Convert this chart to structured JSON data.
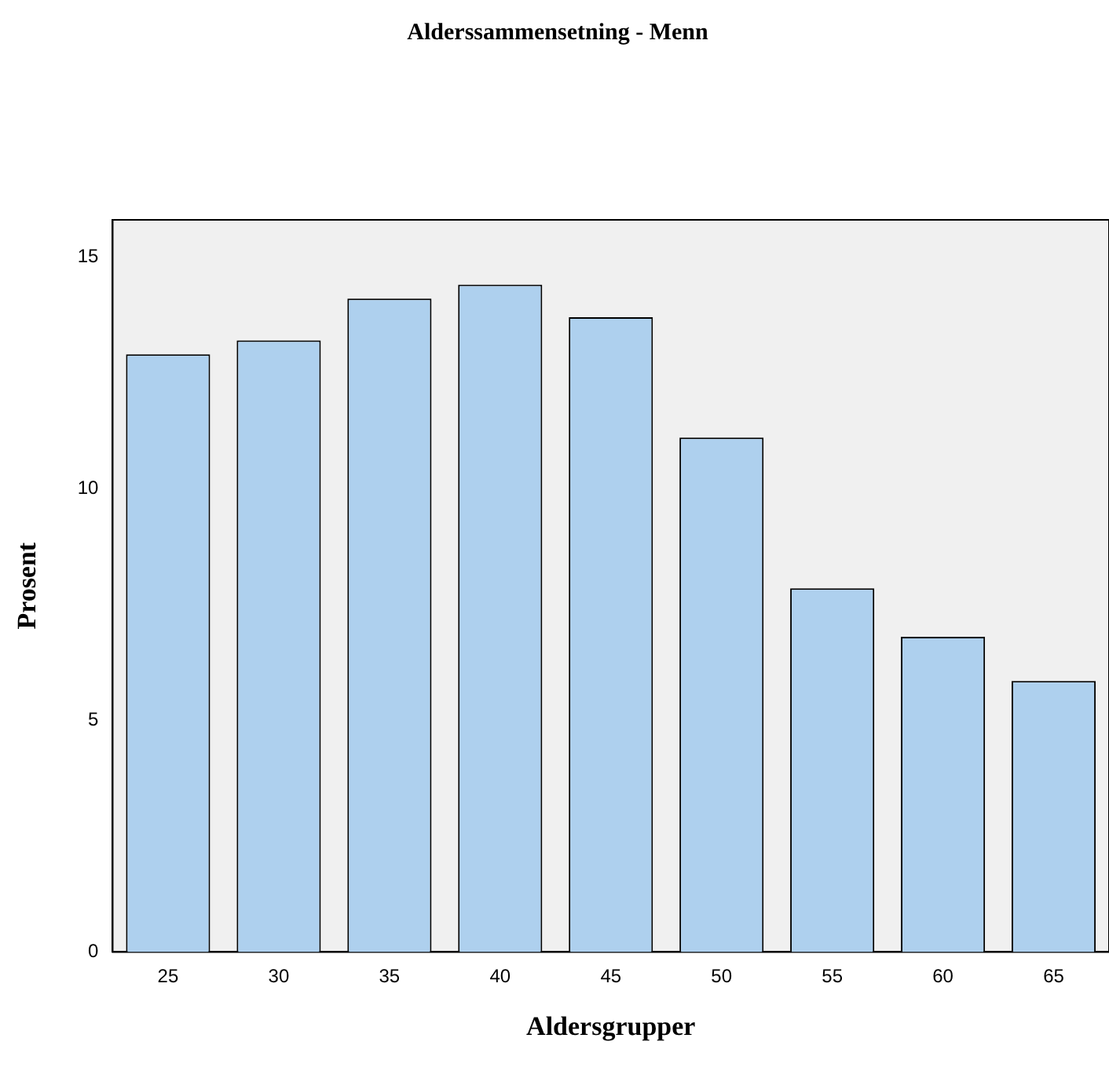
{
  "chart_data": {
    "type": "bar",
    "title": "Alderssammensetning - Menn",
    "xlabel": "Aldersgrupper",
    "ylabel": "Prosent",
    "categories": [
      "25",
      "30",
      "35",
      "40",
      "45",
      "50",
      "55",
      "60",
      "65"
    ],
    "values": [
      12.9,
      13.2,
      14.1,
      14.4,
      13.7,
      11.1,
      7.85,
      6.8,
      5.85
    ],
    "color": "#aed0ee",
    "ylim": [
      0,
      15.8
    ],
    "yticks": [
      0,
      5,
      10,
      15
    ],
    "grid": false,
    "legend": false
  }
}
